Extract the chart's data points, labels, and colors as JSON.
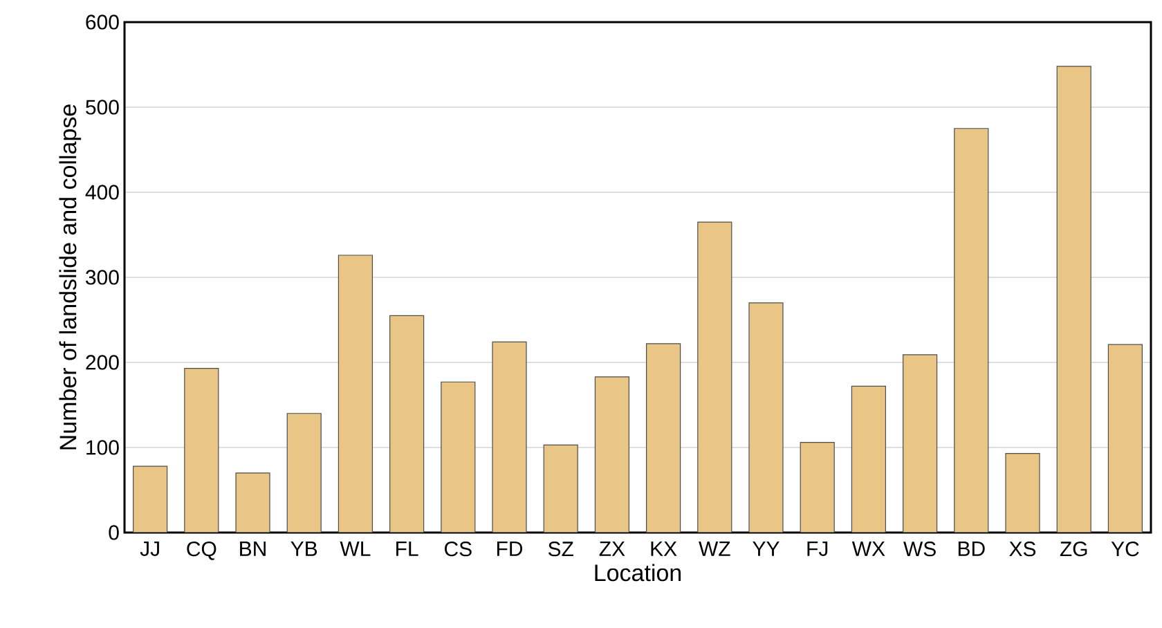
{
  "chart_data": {
    "type": "bar",
    "xlabel": "Location",
    "ylabel": "Number of landslide and collapse",
    "categories": [
      "JJ",
      "CQ",
      "BN",
      "YB",
      "WL",
      "FL",
      "CS",
      "FD",
      "SZ",
      "ZX",
      "KX",
      "WZ",
      "YY",
      "FJ",
      "WX",
      "WS",
      "BD",
      "XS",
      "ZG",
      "YC"
    ],
    "values": [
      78,
      193,
      70,
      140,
      326,
      255,
      177,
      224,
      103,
      183,
      222,
      365,
      270,
      106,
      172,
      209,
      475,
      93,
      548,
      221
    ],
    "color": "#e9c586",
    "ylim": [
      0,
      600
    ],
    "yticks": [
      0,
      100,
      200,
      300,
      400,
      500,
      600
    ],
    "grid": "y"
  }
}
